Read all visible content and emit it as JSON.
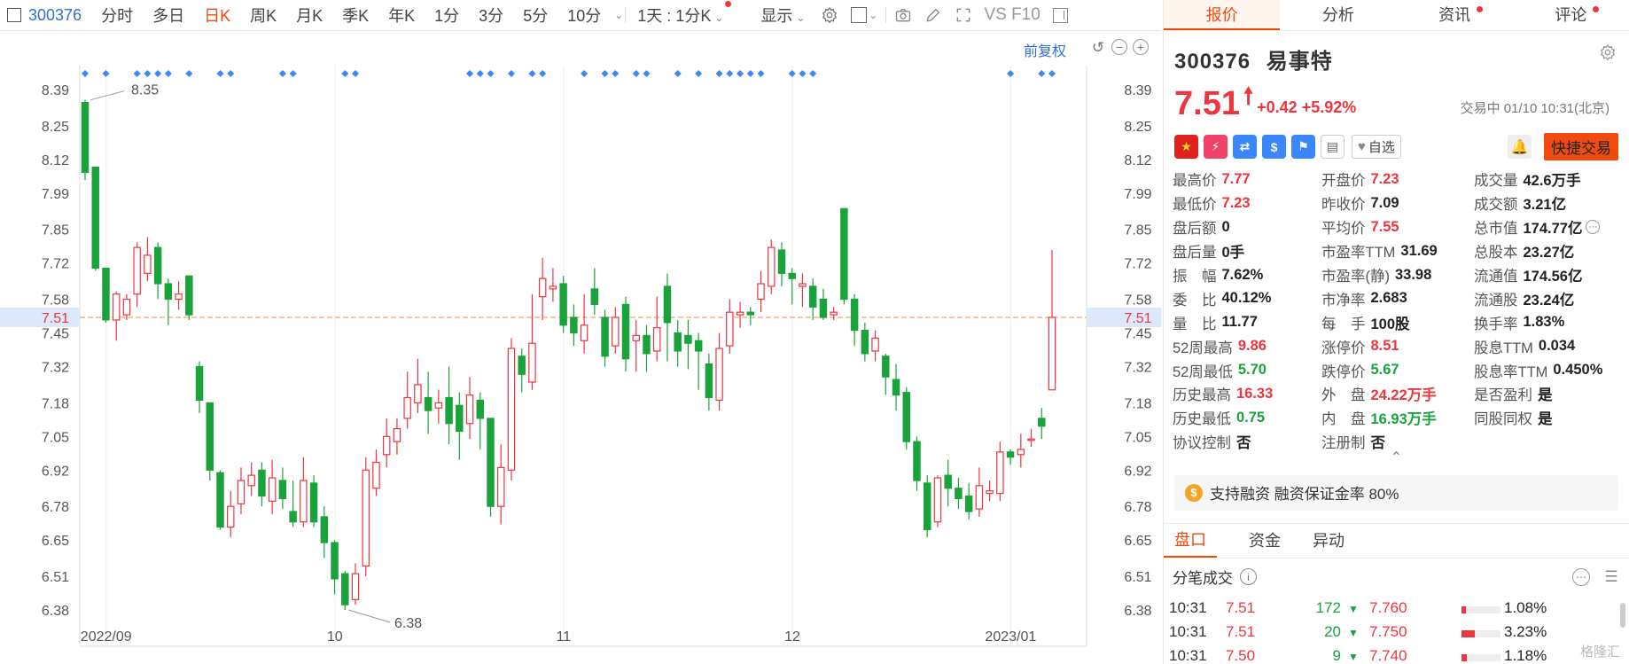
{
  "toolbar": {
    "code": "300376",
    "periods": [
      "分时",
      "多日",
      "日K",
      "周K",
      "月K",
      "季K",
      "年K",
      "1分",
      "3分",
      "5分",
      "10分"
    ],
    "active_period": "日K",
    "minute_select": "1天 : 1分K",
    "display": "显示",
    "vs_label": "VS F10"
  },
  "chart": {
    "fuquan": "前复权",
    "price_ticks": [
      "8.39",
      "8.25",
      "8.12",
      "7.99",
      "7.85",
      "7.72",
      "7.58",
      "7.45",
      "7.32",
      "7.18",
      "7.05",
      "6.92",
      "6.78",
      "6.65",
      "6.51",
      "6.38"
    ],
    "current_price_label": "7.51",
    "max_label": "8.35",
    "min_label": "6.38",
    "date_labels": [
      "2022/09",
      "10",
      "11",
      "12",
      "2023/01"
    ],
    "colors": {
      "up": "#f0343e",
      "down": "#1aa33b",
      "last_line": "#f5a46b",
      "marker": "#3a86ff"
    }
  },
  "chart_data": {
    "type": "candlestick",
    "ylim": [
      6.38,
      8.39
    ],
    "last_price": 7.51,
    "high_marker": 8.35,
    "low_marker": 6.38,
    "candles": [
      [
        8.34,
        8.07,
        8.35,
        8.04
      ],
      [
        8.09,
        7.7,
        8.09,
        7.69
      ],
      [
        7.7,
        7.5,
        7.7,
        7.49
      ],
      [
        7.5,
        7.6,
        7.61,
        7.42
      ],
      [
        7.52,
        7.58,
        7.6,
        7.5
      ],
      [
        7.6,
        7.78,
        7.8,
        7.55
      ],
      [
        7.68,
        7.75,
        7.82,
        7.65
      ],
      [
        7.78,
        7.64,
        7.8,
        7.58
      ],
      [
        7.64,
        7.58,
        7.66,
        7.48
      ],
      [
        7.58,
        7.6,
        7.65,
        7.54
      ],
      [
        7.67,
        7.52,
        7.67,
        7.5
      ],
      [
        7.32,
        7.19,
        7.34,
        7.14
      ],
      [
        7.18,
        6.92,
        7.18,
        6.88
      ],
      [
        6.91,
        6.7,
        6.92,
        6.69
      ],
      [
        6.7,
        6.78,
        6.84,
        6.66
      ],
      [
        6.79,
        6.88,
        6.93,
        6.75
      ],
      [
        6.86,
        6.9,
        6.95,
        6.82
      ],
      [
        6.92,
        6.82,
        6.95,
        6.78
      ],
      [
        6.8,
        6.89,
        6.96,
        6.75
      ],
      [
        6.88,
        6.81,
        6.93,
        6.77
      ],
      [
        6.76,
        6.72,
        6.88,
        6.7
      ],
      [
        6.72,
        6.88,
        6.97,
        6.7
      ],
      [
        6.87,
        6.72,
        6.9,
        6.7
      ],
      [
        6.74,
        6.64,
        6.78,
        6.58
      ],
      [
        6.64,
        6.5,
        6.65,
        6.44
      ],
      [
        6.52,
        6.4,
        6.53,
        6.38
      ],
      [
        6.42,
        6.52,
        6.56,
        6.4
      ],
      [
        6.55,
        6.92,
        6.97,
        6.51
      ],
      [
        6.85,
        6.95,
        7.0,
        6.82
      ],
      [
        6.98,
        7.05,
        7.12,
        6.93
      ],
      [
        7.03,
        7.08,
        7.12,
        6.98
      ],
      [
        7.12,
        7.2,
        7.3,
        7.08
      ],
      [
        7.18,
        7.25,
        7.35,
        7.14
      ],
      [
        7.2,
        7.15,
        7.3,
        7.06
      ],
      [
        7.16,
        7.18,
        7.23,
        7.1
      ],
      [
        7.2,
        7.1,
        7.32,
        7.02
      ],
      [
        7.17,
        7.07,
        7.22,
        6.96
      ],
      [
        7.1,
        7.21,
        7.28,
        7.04
      ],
      [
        7.19,
        7.12,
        7.22,
        7.0
      ],
      [
        7.12,
        6.78,
        7.12,
        6.74
      ],
      [
        6.78,
        6.93,
        7.02,
        6.71
      ],
      [
        6.92,
        7.39,
        7.43,
        6.88
      ],
      [
        7.36,
        7.29,
        7.39,
        7.22
      ],
      [
        7.26,
        7.41,
        7.6,
        7.23
      ],
      [
        7.59,
        7.66,
        7.74,
        7.5
      ],
      [
        7.62,
        7.63,
        7.7,
        7.57
      ],
      [
        7.64,
        7.48,
        7.67,
        7.45
      ],
      [
        7.51,
        7.45,
        7.56,
        7.4
      ],
      [
        7.42,
        7.48,
        7.6,
        7.37
      ],
      [
        7.62,
        7.56,
        7.7,
        7.52
      ],
      [
        7.51,
        7.36,
        7.54,
        7.32
      ],
      [
        7.4,
        7.51,
        7.55,
        7.37
      ],
      [
        7.56,
        7.35,
        7.59,
        7.3
      ],
      [
        7.42,
        7.44,
        7.5,
        7.3
      ],
      [
        7.44,
        7.37,
        7.48,
        7.3
      ],
      [
        7.38,
        7.47,
        7.59,
        7.34
      ],
      [
        7.63,
        7.49,
        7.68,
        7.34
      ],
      [
        7.45,
        7.38,
        7.5,
        7.32
      ],
      [
        7.44,
        7.41,
        7.5,
        7.31
      ],
      [
        7.42,
        7.38,
        7.45,
        7.23
      ],
      [
        7.33,
        7.2,
        7.37,
        7.15
      ],
      [
        7.19,
        7.39,
        7.45,
        7.15
      ],
      [
        7.4,
        7.53,
        7.58,
        7.37
      ],
      [
        7.52,
        7.53,
        7.57,
        7.47
      ],
      [
        7.53,
        7.52,
        7.55,
        7.48
      ],
      [
        7.58,
        7.64,
        7.69,
        7.53
      ],
      [
        7.63,
        7.78,
        7.81,
        7.6
      ],
      [
        7.77,
        7.68,
        7.8,
        7.63
      ],
      [
        7.68,
        7.66,
        7.7,
        7.56
      ],
      [
        7.63,
        7.64,
        7.68,
        7.55
      ],
      [
        7.63,
        7.55,
        7.66,
        7.5
      ],
      [
        7.58,
        7.51,
        7.62,
        7.5
      ],
      [
        7.52,
        7.53,
        7.55,
        7.5
      ],
      [
        7.93,
        7.58,
        7.93,
        7.56
      ],
      [
        7.58,
        7.46,
        7.6,
        7.4
      ],
      [
        7.46,
        7.37,
        7.49,
        7.34
      ],
      [
        7.38,
        7.43,
        7.46,
        7.34
      ],
      [
        7.36,
        7.28,
        7.37,
        7.21
      ],
      [
        7.27,
        7.21,
        7.33,
        7.15
      ],
      [
        7.22,
        7.03,
        7.24,
        7.0
      ],
      [
        7.03,
        6.88,
        7.05,
        6.84
      ],
      [
        6.87,
        6.69,
        6.9,
        6.66
      ],
      [
        6.72,
        6.89,
        6.9,
        6.7
      ],
      [
        6.9,
        6.85,
        6.96,
        6.78
      ],
      [
        6.85,
        6.81,
        6.89,
        6.77
      ],
      [
        6.82,
        6.76,
        6.87,
        6.73
      ],
      [
        6.77,
        6.86,
        6.93,
        6.74
      ],
      [
        6.83,
        6.84,
        6.88,
        6.8
      ],
      [
        6.83,
        6.99,
        7.03,
        6.8
      ],
      [
        6.99,
        6.97,
        7.0,
        6.94
      ],
      [
        6.98,
        7.0,
        7.06,
        6.93
      ],
      [
        7.04,
        7.04,
        7.08,
        7.01
      ],
      [
        7.12,
        7.09,
        7.16,
        7.04
      ],
      [
        7.23,
        7.51,
        7.77,
        7.23
      ]
    ],
    "marker_positions": [
      0,
      2,
      5,
      6,
      7,
      8,
      10,
      13,
      14,
      19,
      20,
      25,
      26,
      37,
      38,
      39,
      41,
      43,
      44,
      48,
      50,
      51,
      53,
      54,
      57,
      59,
      61,
      62,
      63,
      64,
      65,
      68,
      69,
      70,
      89,
      92,
      93
    ]
  },
  "right_panel": {
    "tabs": [
      "报价",
      "分析",
      "资讯",
      "评论"
    ],
    "code": "300376",
    "name": "易事特",
    "price": "7.51",
    "change": "+0.42",
    "change_pct": "+5.92%",
    "status": "交易中 01/10 10:31(北京)",
    "zixuan": "自选",
    "quick_trade": "快捷交易",
    "stats": [
      {
        "label": "最高价",
        "value": "7.77",
        "color": "red"
      },
      {
        "label": "开盘价",
        "value": "7.23",
        "color": "red"
      },
      {
        "label": "成交量",
        "value": "42.6万手",
        "color": ""
      },
      {
        "label": "最低价",
        "value": "7.23",
        "color": "red"
      },
      {
        "label": "昨收价",
        "value": "7.09",
        "color": ""
      },
      {
        "label": "成交额",
        "value": "3.21亿",
        "color": ""
      },
      {
        "label": "盘后额",
        "value": "0",
        "color": ""
      },
      {
        "label": "平均价",
        "value": "7.55",
        "color": "red"
      },
      {
        "label": "总市值",
        "value": "174.77亿",
        "color": ""
      },
      {
        "label": "盘后量",
        "value": "0手",
        "color": ""
      },
      {
        "label": "市盈率TTM",
        "value": "31.69",
        "color": ""
      },
      {
        "label": "总股本",
        "value": "23.27亿",
        "color": ""
      },
      {
        "label": "振　幅",
        "value": "7.62%",
        "color": ""
      },
      {
        "label": "市盈率(静)",
        "value": "33.98",
        "color": ""
      },
      {
        "label": "流通值",
        "value": "174.56亿",
        "color": ""
      },
      {
        "label": "委　比",
        "value": "40.12%",
        "color": ""
      },
      {
        "label": "市净率",
        "value": "2.683",
        "color": ""
      },
      {
        "label": "流通股",
        "value": "23.24亿",
        "color": ""
      },
      {
        "label": "量　比",
        "value": "11.77",
        "color": ""
      },
      {
        "label": "每　手",
        "value": "100股",
        "color": ""
      },
      {
        "label": "换手率",
        "value": "1.83%",
        "color": ""
      },
      {
        "label": "52周最高",
        "value": "9.86",
        "color": "red"
      },
      {
        "label": "涨停价",
        "value": "8.51",
        "color": "red"
      },
      {
        "label": "股息TTM",
        "value": "0.034",
        "color": ""
      },
      {
        "label": "52周最低",
        "value": "5.70",
        "color": "green"
      },
      {
        "label": "跌停价",
        "value": "5.67",
        "color": "green"
      },
      {
        "label": "股息率TTM",
        "value": "0.450%",
        "color": ""
      },
      {
        "label": "历史最高",
        "value": "16.33",
        "color": "red"
      },
      {
        "label": "外　盘",
        "value": "24.22万手",
        "color": "red"
      },
      {
        "label": "是否盈利",
        "value": "是",
        "color": ""
      },
      {
        "label": "历史最低",
        "value": "0.75",
        "color": "green"
      },
      {
        "label": "内　盘",
        "value": "16.93万手",
        "color": "green"
      },
      {
        "label": "同股同权",
        "value": "是",
        "color": ""
      },
      {
        "label": "协议控制",
        "value": "否",
        "color": ""
      },
      {
        "label": "注册制",
        "value": "否",
        "color": ""
      }
    ],
    "margin_text": "支持融资 融资保证金率 80%",
    "sub_tabs": [
      "盘口",
      "资金",
      "异动"
    ],
    "ticks_title": "分笔成交",
    "ticks": [
      {
        "time": "10:31",
        "price": "7.51",
        "vol": "172",
        "level": "7.760",
        "pct": "1.08%",
        "bar": 0.12
      },
      {
        "time": "10:31",
        "price": "7.51",
        "vol": "20",
        "level": "7.750",
        "pct": "3.23%",
        "bar": 0.34
      },
      {
        "time": "10:31",
        "price": "7.50",
        "vol": "9",
        "level": "7.740",
        "pct": "1.18%",
        "bar": 0.13
      }
    ],
    "watermark": "格隆汇"
  }
}
